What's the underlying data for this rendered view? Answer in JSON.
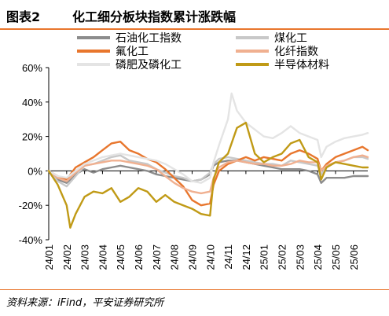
{
  "header": {
    "figure_number": "图表2",
    "title": "化工细分板块指数累计涨跌幅"
  },
  "footer": {
    "source": "资料来源：iFind，平安证券研究所"
  },
  "chart_data": {
    "type": "line",
    "title": "化工细分板块指数累计涨跌幅",
    "xlabel": "",
    "ylabel": "",
    "ylim": [
      -40,
      60
    ],
    "yticks": [
      -40,
      -20,
      0,
      20,
      40,
      60
    ],
    "ytick_labels": [
      "-40%",
      "-20%",
      "0%",
      "20%",
      "40%",
      "60%"
    ],
    "categories": [
      "24/01",
      "24/02",
      "24/03",
      "24/04",
      "24/05",
      "24/06",
      "24/07",
      "24/08",
      "24/09",
      "24/10",
      "24/11",
      "24/12",
      "25/01",
      "25/02",
      "25/03",
      "25/04",
      "25/05",
      "25/06"
    ],
    "x_extent": [
      0,
      17.8
    ],
    "legend_placement": "top",
    "grid": false,
    "series": [
      {
        "name": "石油化工指数",
        "color": "#8c8c8c",
        "points": [
          [
            0,
            0
          ],
          [
            0.5,
            -5
          ],
          [
            1,
            -7
          ],
          [
            1.5,
            -2
          ],
          [
            2,
            1
          ],
          [
            2.5,
            -1
          ],
          [
            3,
            1
          ],
          [
            3.5,
            2
          ],
          [
            4,
            3
          ],
          [
            4.5,
            2
          ],
          [
            5,
            1
          ],
          [
            5.5,
            0
          ],
          [
            6,
            -2
          ],
          [
            6.5,
            -3
          ],
          [
            7,
            -4
          ],
          [
            7.5,
            -5
          ],
          [
            8,
            -6
          ],
          [
            8.5,
            -5
          ],
          [
            9,
            -2
          ],
          [
            9.2,
            3
          ],
          [
            9.5,
            5
          ],
          [
            10,
            6
          ],
          [
            10.5,
            6
          ],
          [
            11,
            5
          ],
          [
            11.5,
            4
          ],
          [
            12,
            3
          ],
          [
            12.5,
            2
          ],
          [
            13,
            1
          ],
          [
            13.5,
            1
          ],
          [
            14,
            1
          ],
          [
            14.5,
            0
          ],
          [
            15,
            -2
          ],
          [
            15.2,
            -7
          ],
          [
            15.5,
            -4
          ],
          [
            16,
            -4
          ],
          [
            16.5,
            -4
          ],
          [
            17,
            -3
          ],
          [
            17.5,
            -3
          ],
          [
            17.8,
            -3
          ]
        ]
      },
      {
        "name": "煤化工",
        "color": "#c8c8c8",
        "points": [
          [
            0,
            0
          ],
          [
            0.5,
            -6
          ],
          [
            1,
            -9
          ],
          [
            1.5,
            -3
          ],
          [
            2,
            3
          ],
          [
            2.5,
            4
          ],
          [
            3,
            6
          ],
          [
            3.5,
            8
          ],
          [
            4,
            9
          ],
          [
            4.5,
            6
          ],
          [
            5,
            5
          ],
          [
            5.5,
            4
          ],
          [
            6,
            1
          ],
          [
            6.5,
            -1
          ],
          [
            7,
            -3
          ],
          [
            7.5,
            -4
          ],
          [
            8,
            -6
          ],
          [
            8.5,
            -5
          ],
          [
            9,
            -1
          ],
          [
            9.2,
            4
          ],
          [
            9.5,
            7
          ],
          [
            10,
            8
          ],
          [
            10.5,
            7
          ],
          [
            11,
            6
          ],
          [
            11.5,
            5
          ],
          [
            12,
            4
          ],
          [
            12.5,
            4
          ],
          [
            13,
            3
          ],
          [
            13.5,
            6
          ],
          [
            14,
            5
          ],
          [
            14.5,
            4
          ],
          [
            15,
            3
          ],
          [
            15.2,
            -2
          ],
          [
            15.5,
            2
          ],
          [
            16,
            5
          ],
          [
            16.5,
            6
          ],
          [
            17,
            8
          ],
          [
            17.5,
            8
          ],
          [
            17.8,
            7
          ]
        ]
      },
      {
        "name": "氟化工",
        "color": "#e8762d",
        "points": [
          [
            0,
            0
          ],
          [
            0.5,
            -3
          ],
          [
            1,
            -5
          ],
          [
            1.5,
            2
          ],
          [
            2,
            5
          ],
          [
            2.5,
            8
          ],
          [
            3,
            12
          ],
          [
            3.5,
            16
          ],
          [
            4,
            17
          ],
          [
            4.5,
            12
          ],
          [
            5,
            10
          ],
          [
            5.5,
            7
          ],
          [
            6,
            5
          ],
          [
            6.5,
            1
          ],
          [
            7,
            -4
          ],
          [
            7.5,
            -9
          ],
          [
            8,
            -17
          ],
          [
            8.5,
            -20
          ],
          [
            9,
            -19
          ],
          [
            9.2,
            -8
          ],
          [
            9.5,
            0
          ],
          [
            10,
            4
          ],
          [
            10.5,
            6
          ],
          [
            11,
            8
          ],
          [
            11.5,
            6
          ],
          [
            12,
            8
          ],
          [
            12.5,
            7
          ],
          [
            13,
            6
          ],
          [
            13.5,
            10
          ],
          [
            14,
            12
          ],
          [
            14.5,
            10
          ],
          [
            15,
            7
          ],
          [
            15.2,
            0
          ],
          [
            15.5,
            4
          ],
          [
            16,
            8
          ],
          [
            16.5,
            10
          ],
          [
            17,
            12
          ],
          [
            17.5,
            14
          ],
          [
            17.8,
            12
          ]
        ]
      },
      {
        "name": "化纤指数",
        "color": "#f0b090",
        "points": [
          [
            0,
            0
          ],
          [
            0.5,
            -4
          ],
          [
            1,
            -6
          ],
          [
            1.5,
            -1
          ],
          [
            2,
            3
          ],
          [
            2.5,
            4
          ],
          [
            3,
            5
          ],
          [
            3.5,
            6
          ],
          [
            4,
            6
          ],
          [
            4.5,
            5
          ],
          [
            5,
            4
          ],
          [
            5.5,
            3
          ],
          [
            6,
            1
          ],
          [
            6.5,
            -3
          ],
          [
            7,
            -7
          ],
          [
            7.5,
            -10
          ],
          [
            8,
            -12
          ],
          [
            8.5,
            -13
          ],
          [
            9,
            -12
          ],
          [
            9.2,
            -4
          ],
          [
            9.5,
            2
          ],
          [
            10,
            5
          ],
          [
            10.5,
            6
          ],
          [
            11,
            5
          ],
          [
            11.5,
            4
          ],
          [
            12,
            4
          ],
          [
            12.5,
            3
          ],
          [
            13,
            3
          ],
          [
            13.5,
            4
          ],
          [
            14,
            6
          ],
          [
            14.5,
            5
          ],
          [
            15,
            5
          ],
          [
            15.2,
            0
          ],
          [
            15.5,
            3
          ],
          [
            16,
            5
          ],
          [
            16.5,
            6
          ],
          [
            17,
            8
          ],
          [
            17.5,
            9
          ],
          [
            17.8,
            8
          ]
        ]
      },
      {
        "name": "磷肥及磷化工",
        "color": "#e4e4e4",
        "points": [
          [
            0,
            0
          ],
          [
            0.5,
            -3
          ],
          [
            1,
            -4
          ],
          [
            1.5,
            0
          ],
          [
            2,
            4
          ],
          [
            2.5,
            6
          ],
          [
            3,
            8
          ],
          [
            3.5,
            9
          ],
          [
            4,
            10
          ],
          [
            4.5,
            9
          ],
          [
            5,
            8
          ],
          [
            5.5,
            7
          ],
          [
            6,
            6
          ],
          [
            6.5,
            4
          ],
          [
            7,
            1
          ],
          [
            7.5,
            -2
          ],
          [
            8,
            -6
          ],
          [
            8.5,
            -7
          ],
          [
            9,
            -4
          ],
          [
            9.2,
            5
          ],
          [
            9.5,
            15
          ],
          [
            10,
            30
          ],
          [
            10.2,
            45
          ],
          [
            10.5,
            35
          ],
          [
            11,
            28
          ],
          [
            11.5,
            24
          ],
          [
            12,
            20
          ],
          [
            12.5,
            19
          ],
          [
            13,
            22
          ],
          [
            13.5,
            26
          ],
          [
            14,
            22
          ],
          [
            14.5,
            20
          ],
          [
            15,
            18
          ],
          [
            15.2,
            8
          ],
          [
            15.5,
            14
          ],
          [
            16,
            17
          ],
          [
            16.5,
            19
          ],
          [
            17,
            20
          ],
          [
            17.5,
            21
          ],
          [
            17.8,
            22
          ]
        ]
      },
      {
        "name": "半导体材料",
        "color": "#c09a16",
        "points": [
          [
            0,
            0
          ],
          [
            0.5,
            -8
          ],
          [
            1,
            -20
          ],
          [
            1.2,
            -33
          ],
          [
            1.5,
            -25
          ],
          [
            2,
            -15
          ],
          [
            2.5,
            -12
          ],
          [
            3,
            -13
          ],
          [
            3.5,
            -10
          ],
          [
            4,
            -18
          ],
          [
            4.5,
            -15
          ],
          [
            5,
            -10
          ],
          [
            5.5,
            -12
          ],
          [
            6,
            -18
          ],
          [
            6.5,
            -14
          ],
          [
            7,
            -18
          ],
          [
            7.5,
            -20
          ],
          [
            8,
            -22
          ],
          [
            8.5,
            -25
          ],
          [
            9,
            -26
          ],
          [
            9.2,
            -5
          ],
          [
            9.5,
            5
          ],
          [
            10,
            10
          ],
          [
            10.5,
            25
          ],
          [
            11,
            28
          ],
          [
            11.5,
            10
          ],
          [
            12,
            5
          ],
          [
            12.5,
            8
          ],
          [
            13,
            10
          ],
          [
            13.5,
            16
          ],
          [
            14,
            18
          ],
          [
            14.5,
            8
          ],
          [
            15,
            5
          ],
          [
            15.2,
            -5
          ],
          [
            15.5,
            2
          ],
          [
            16,
            5
          ],
          [
            16.5,
            4
          ],
          [
            17,
            3
          ],
          [
            17.5,
            2
          ],
          [
            17.8,
            2
          ]
        ]
      }
    ]
  }
}
